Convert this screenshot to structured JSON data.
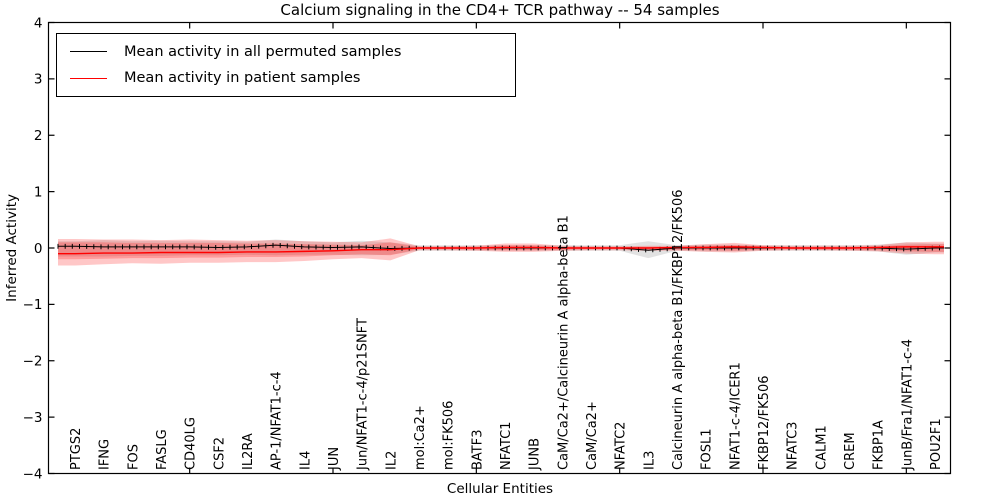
{
  "title": "Calcium signaling in the CD4+ TCR pathway -- 54 samples",
  "axes": {
    "ylabel": "Inferred Activity",
    "xlabel": "Cellular Entities",
    "ylim": [
      -4,
      4
    ],
    "y_tick_values": [
      4,
      3,
      2,
      1,
      0,
      -1,
      -2,
      -3,
      -4
    ],
    "y_tick_labels": [
      "4",
      "3",
      "2",
      "1",
      "0",
      "−1",
      "−2",
      "−3",
      "−4"
    ]
  },
  "legend": {
    "items": [
      {
        "label": "Mean activity in all permuted samples",
        "color": "#000000"
      },
      {
        "label": "Mean activity in patient samples",
        "color": "#ff0000"
      }
    ]
  },
  "colors": {
    "permuted_line": "#000000",
    "patient_line": "#ff0000",
    "permuted_band": "rgba(125,125,125,0.22)",
    "patient_band_outer": "rgba(255,30,30,0.25)",
    "patient_band_inner": "rgba(255,0,0,0.22)",
    "spine": "#000000"
  },
  "chart_data": {
    "type": "line",
    "title": "Calcium signaling in the CD4+ TCR pathway -- 54 samples",
    "xlabel": "Cellular Entities",
    "ylabel": "Inferred Activity",
    "ylim": [
      -4,
      4
    ],
    "grid": false,
    "legend_position": "upper left",
    "categories": [
      "PTGS2",
      "IFNG",
      "FOS",
      "FASLG",
      "CD40LG",
      "CSF2",
      "IL2RA",
      "AP-1/NFAT1-c-4",
      "IL4",
      "JUN",
      "Jun/NFAT1-c-4/p21SNFT",
      "IL2",
      "mol:Ca2+",
      "mol:FK506",
      "BATF3",
      "NFATC1",
      "JUNB",
      "CaM/Ca2+/Calcineurin A alpha-beta B1",
      "CaM/Ca2+",
      "NFATC2",
      "IL3",
      "Calcineurin A alpha-beta B1/FKBP12/FK506",
      "FOSL1",
      "NFAT1-c-4/ICER1",
      "FKBP12/FK506",
      "NFATC3",
      "CALM1",
      "CREM",
      "FKBP1A",
      "JunB/Fra1/NFAT1-c-4",
      "POU2F1"
    ],
    "series": [
      {
        "name": "Mean activity in all permuted samples",
        "color": "#000000",
        "values": [
          0.03,
          0.02,
          0.02,
          0.02,
          0.02,
          0.01,
          0.02,
          0.05,
          0.02,
          0.01,
          0.02,
          -0.01,
          0.0,
          0.0,
          0.0,
          0.0,
          0.0,
          0.0,
          0.0,
          0.0,
          -0.04,
          0.0,
          0.0,
          0.0,
          0.0,
          0.0,
          0.0,
          0.0,
          0.0,
          -0.02,
          0.0
        ]
      },
      {
        "name": "Mean activity in patient samples",
        "color": "#ff0000",
        "values": [
          -0.1,
          -0.09,
          -0.09,
          -0.08,
          -0.08,
          -0.08,
          -0.07,
          -0.07,
          -0.06,
          -0.05,
          -0.03,
          -0.03,
          0.0,
          0.0,
          0.0,
          0.01,
          0.01,
          0.0,
          0.0,
          0.0,
          0.0,
          0.01,
          0.01,
          0.02,
          0.01,
          0.0,
          0.0,
          0.0,
          0.01,
          0.02,
          0.02
        ]
      }
    ],
    "bands": [
      {
        "name": "permuted-samples-range",
        "color_key": "permuted_band",
        "top": [
          0.12,
          0.14,
          0.12,
          0.13,
          0.12,
          0.12,
          0.11,
          0.15,
          0.12,
          0.1,
          0.13,
          0.1,
          0.05,
          0.05,
          0.05,
          0.05,
          0.05,
          0.05,
          0.05,
          0.05,
          0.12,
          0.05,
          0.06,
          0.06,
          0.05,
          0.05,
          0.05,
          0.05,
          0.06,
          0.1,
          0.08
        ],
        "bottom": [
          -0.15,
          -0.15,
          -0.14,
          -0.14,
          -0.13,
          -0.13,
          -0.12,
          -0.13,
          -0.12,
          -0.12,
          -0.13,
          -0.12,
          -0.05,
          -0.05,
          -0.05,
          -0.05,
          -0.05,
          -0.05,
          -0.05,
          -0.05,
          -0.18,
          -0.05,
          -0.06,
          -0.06,
          -0.05,
          -0.05,
          -0.05,
          -0.05,
          -0.06,
          -0.12,
          -0.08
        ]
      },
      {
        "name": "patient-samples-range-outer",
        "color_key": "patient_band_outer",
        "top": [
          0.16,
          0.15,
          0.15,
          0.14,
          0.15,
          0.14,
          0.13,
          0.14,
          0.12,
          0.11,
          0.1,
          0.17,
          0.03,
          0.03,
          0.04,
          0.08,
          0.08,
          0.04,
          0.03,
          0.03,
          0.04,
          0.04,
          0.07,
          0.09,
          0.05,
          0.04,
          0.04,
          0.04,
          0.05,
          0.1,
          0.11
        ],
        "bottom": [
          -0.31,
          -0.29,
          -0.27,
          -0.28,
          -0.26,
          -0.26,
          -0.25,
          -0.25,
          -0.23,
          -0.2,
          -0.18,
          -0.22,
          -0.04,
          -0.04,
          -0.05,
          -0.07,
          -0.07,
          -0.05,
          -0.04,
          -0.04,
          -0.05,
          -0.05,
          -0.07,
          -0.08,
          -0.05,
          -0.04,
          -0.04,
          -0.05,
          -0.06,
          -0.1,
          -0.11
        ]
      },
      {
        "name": "patient-samples-range-inner",
        "color_key": "patient_band_inner",
        "top": [
          0.1,
          0.1,
          0.09,
          0.09,
          0.09,
          0.09,
          0.08,
          0.08,
          0.07,
          0.06,
          0.05,
          0.1,
          0.02,
          0.02,
          0.02,
          0.05,
          0.05,
          0.02,
          0.02,
          0.02,
          0.02,
          0.02,
          0.04,
          0.05,
          0.03,
          0.02,
          0.02,
          0.02,
          0.03,
          0.06,
          0.07
        ],
        "bottom": [
          -0.2,
          -0.19,
          -0.18,
          -0.18,
          -0.17,
          -0.17,
          -0.16,
          -0.16,
          -0.15,
          -0.13,
          -0.11,
          -0.13,
          -0.02,
          -0.02,
          -0.03,
          -0.04,
          -0.04,
          -0.03,
          -0.02,
          -0.02,
          -0.03,
          -0.03,
          -0.04,
          -0.05,
          -0.03,
          -0.02,
          -0.03,
          -0.03,
          -0.04,
          -0.06,
          -0.07
        ]
      }
    ]
  }
}
